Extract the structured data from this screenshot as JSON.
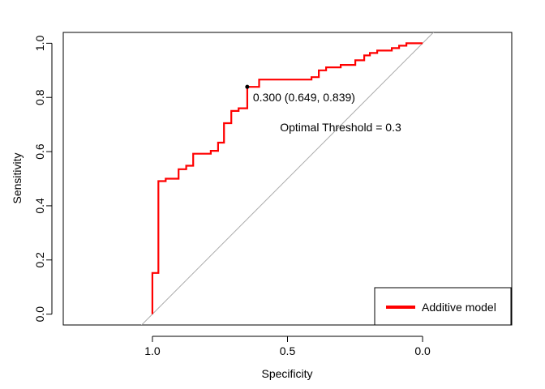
{
  "chart_data": {
    "type": "line",
    "title": "",
    "xlabel": "Specificity",
    "ylabel": "Sensitivity",
    "x_reversed": true,
    "xlim": [
      1.33,
      -0.33
    ],
    "ylim": [
      -0.04,
      1.04
    ],
    "x_ticks": [
      1.0,
      0.5,
      0.0
    ],
    "x_tick_labels": [
      "1.0",
      "0.5",
      "0.0"
    ],
    "y_ticks": [
      0.0,
      0.2,
      0.4,
      0.6,
      0.8,
      1.0
    ],
    "y_tick_labels": [
      "0.0",
      "0.2",
      "0.4",
      "0.6",
      "0.8",
      "1.0"
    ],
    "grid": false,
    "legend_position": "bottom-right",
    "series": [
      {
        "name": "Additive model",
        "color": "#ff0000",
        "points": [
          [
            1.0,
            0.0
          ],
          [
            1.0,
            0.152
          ],
          [
            0.978,
            0.152
          ],
          [
            0.978,
            0.491
          ],
          [
            0.951,
            0.491
          ],
          [
            0.951,
            0.5
          ],
          [
            0.903,
            0.5
          ],
          [
            0.903,
            0.535
          ],
          [
            0.875,
            0.535
          ],
          [
            0.875,
            0.548
          ],
          [
            0.849,
            0.548
          ],
          [
            0.849,
            0.592
          ],
          [
            0.784,
            0.592
          ],
          [
            0.784,
            0.603
          ],
          [
            0.757,
            0.603
          ],
          [
            0.757,
            0.633
          ],
          [
            0.735,
            0.633
          ],
          [
            0.735,
            0.705
          ],
          [
            0.708,
            0.705
          ],
          [
            0.708,
            0.75
          ],
          [
            0.681,
            0.75
          ],
          [
            0.681,
            0.76
          ],
          [
            0.649,
            0.76
          ],
          [
            0.649,
            0.839
          ],
          [
            0.605,
            0.839
          ],
          [
            0.605,
            0.866
          ],
          [
            0.411,
            0.866
          ],
          [
            0.411,
            0.875
          ],
          [
            0.384,
            0.875
          ],
          [
            0.384,
            0.9
          ],
          [
            0.357,
            0.9
          ],
          [
            0.357,
            0.911
          ],
          [
            0.303,
            0.911
          ],
          [
            0.303,
            0.92
          ],
          [
            0.249,
            0.92
          ],
          [
            0.249,
            0.937
          ],
          [
            0.216,
            0.937
          ],
          [
            0.216,
            0.955
          ],
          [
            0.195,
            0.955
          ],
          [
            0.195,
            0.964
          ],
          [
            0.168,
            0.964
          ],
          [
            0.168,
            0.973
          ],
          [
            0.114,
            0.973
          ],
          [
            0.114,
            0.982
          ],
          [
            0.087,
            0.982
          ],
          [
            0.087,
            0.991
          ],
          [
            0.06,
            0.991
          ],
          [
            0.06,
            1.0
          ],
          [
            0.0,
            1.0
          ]
        ]
      }
    ],
    "reference_line": {
      "from": [
        1.0,
        0.0
      ],
      "to": [
        0.0,
        1.0
      ],
      "color": "#aaaaaa"
    },
    "threshold_point": {
      "specificity": 0.649,
      "sensitivity": 0.839,
      "label": "0.300 (0.649, 0.839)"
    },
    "annotation": "Optimal Threshold = 0.3"
  }
}
